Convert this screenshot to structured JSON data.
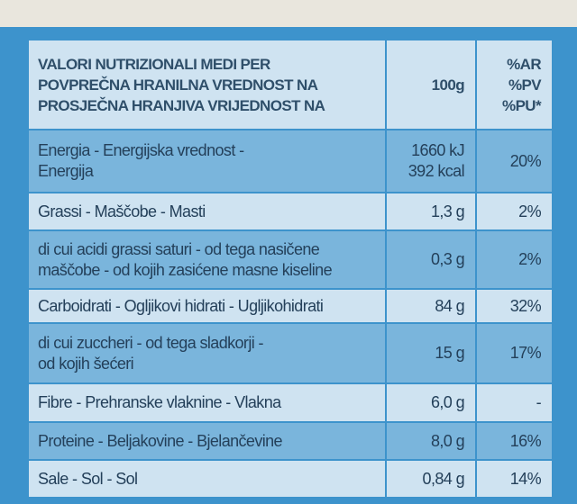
{
  "header": {
    "label": [
      "VALORI NUTRIZIONALI MEDI PER",
      "POVPREČNA HRANILNA VREDNOST NA",
      "PROSJEČNA HRANJIVA VRIJEDNOST NA"
    ],
    "amount": [
      "100g"
    ],
    "percent": [
      "%AR",
      "%PV",
      "%PU*"
    ]
  },
  "rows": [
    {
      "label": [
        "Energia - Energijska vrednost -",
        "Energija"
      ],
      "amount": [
        "1660 kJ",
        "392 kcal"
      ],
      "percent": [
        "20%"
      ]
    },
    {
      "label": [
        "Grassi - Maščobe - Masti"
      ],
      "amount": [
        "1,3 g"
      ],
      "percent": [
        "2%"
      ]
    },
    {
      "label": [
        "di cui acidi grassi saturi - od tega nasičene",
        "maščobe - od kojih zasićene masne kiseline"
      ],
      "amount": [
        "0,3 g"
      ],
      "percent": [
        "2%"
      ]
    },
    {
      "label": [
        "Carboidrati - Ogljikovi hidrati - Ugljikohidrati"
      ],
      "amount": [
        "84 g"
      ],
      "percent": [
        "32%"
      ]
    },
    {
      "label": [
        "di cui zuccheri - od tega sladkorji -",
        "od kojih šećeri"
      ],
      "amount": [
        "15 g"
      ],
      "percent": [
        "17%"
      ]
    },
    {
      "label": [
        "Fibre - Prehranske vlaknine - Vlakna"
      ],
      "amount": [
        "6,0 g"
      ],
      "percent": [
        "-"
      ]
    },
    {
      "label": [
        "Proteine - Beljakovine - Bjelančevine"
      ],
      "amount": [
        "8,0 g"
      ],
      "percent": [
        "16%"
      ]
    },
    {
      "label": [
        "Sale - Sol - Sol"
      ],
      "amount": [
        "0,84 g"
      ],
      "percent": [
        "14%"
      ]
    }
  ]
}
